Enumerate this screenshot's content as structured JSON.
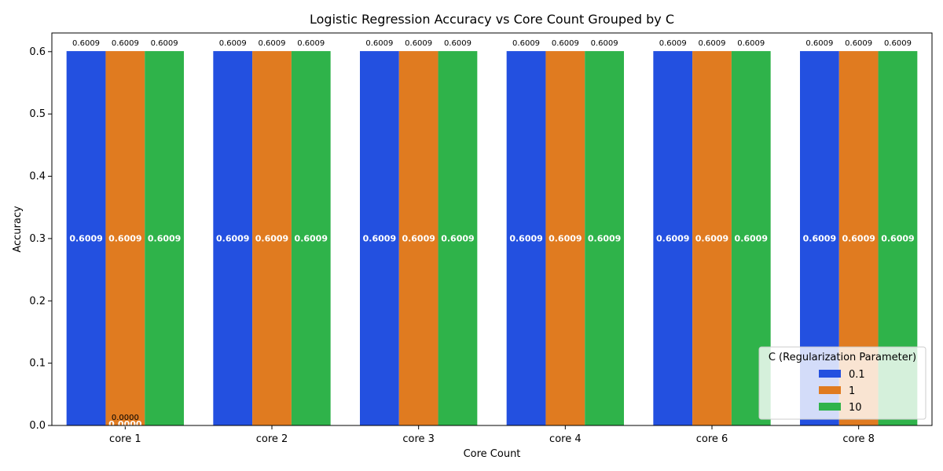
{
  "chart_data": {
    "type": "bar",
    "title": "Logistic Regression Accuracy vs Core Count Grouped by C",
    "xlabel": "Core Count",
    "ylabel": "Accuracy",
    "categories": [
      "core 1",
      "core 2",
      "core 3",
      "core 4",
      "core 6",
      "core 8"
    ],
    "ylim": [
      0,
      0.63
    ],
    "yticks": [
      0.0,
      0.1,
      0.2,
      0.3,
      0.4,
      0.5,
      0.6
    ],
    "ytick_labels": [
      "0.0",
      "0.1",
      "0.2",
      "0.3",
      "0.4",
      "0.5",
      "0.6"
    ],
    "grid": false,
    "legend": {
      "title": "C (Regularization Parameter)",
      "placement": "lower-right"
    },
    "series": [
      {
        "name": "0.1",
        "color": "#2350e0",
        "values": [
          0.6009,
          0.6009,
          0.6009,
          0.6009,
          0.6009,
          0.6009
        ]
      },
      {
        "name": "1",
        "color": "#e07b20",
        "values": [
          0.6009,
          0.6009,
          0.6009,
          0.6009,
          0.6009,
          0.6009
        ]
      },
      {
        "name": "10",
        "color": "#2fb34a",
        "values": [
          0.6009,
          0.6009,
          0.6009,
          0.6009,
          0.6009,
          0.6009
        ]
      }
    ],
    "extra_labels": [
      {
        "category": "core 1",
        "series": "1",
        "top_text": "0.0000",
        "mid_text": "0.0000"
      }
    ]
  }
}
